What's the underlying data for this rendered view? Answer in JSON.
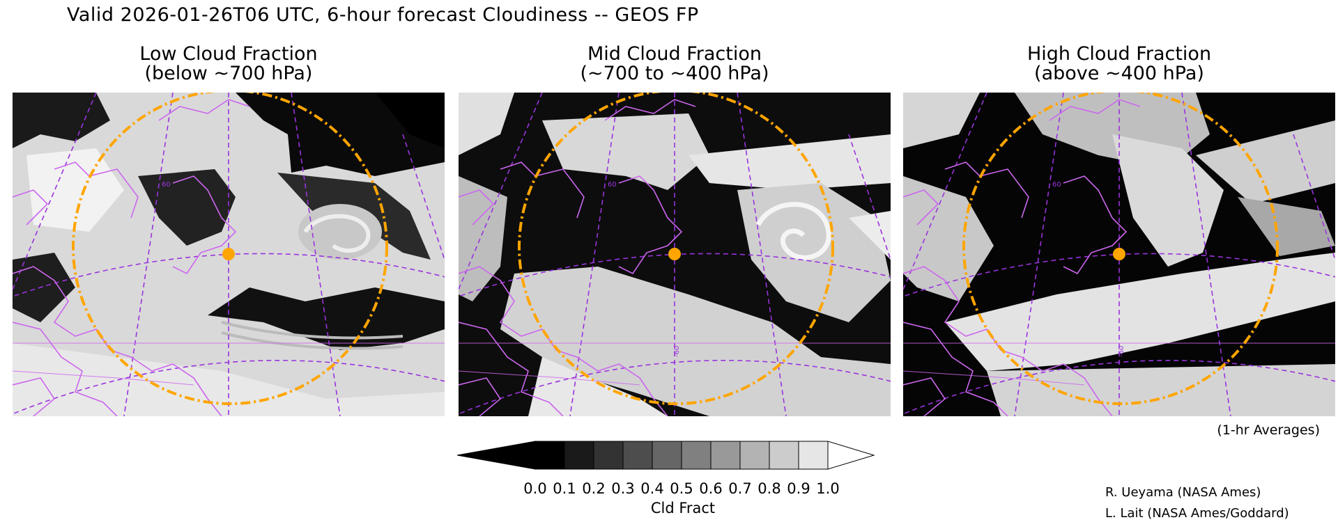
{
  "title": "Valid 2026-01-26T06 UTC, 6-hour forecast Cloudiness -- GEOS FP",
  "panels": [
    {
      "id": "low",
      "title_line1": "Low Cloud Fraction",
      "title_line2": "(below ~700 hPa)"
    },
    {
      "id": "mid",
      "title_line1": "Mid Cloud Fraction",
      "title_line2": "(~700 to ~400 hPa)"
    },
    {
      "id": "high",
      "title_line1": "High Cloud Fraction",
      "title_line2": "(above ~400 hPa)"
    }
  ],
  "map_labels": {
    "lat60": "60",
    "lon60": "-60"
  },
  "colorbar": {
    "label": "Cld Fract",
    "ticks": [
      "0.0",
      "0.1",
      "0.2",
      "0.3",
      "0.4",
      "0.5",
      "0.6",
      "0.7",
      "0.8",
      "0.9",
      "1.0"
    ],
    "colors": [
      "#000000",
      "#1a1a1a",
      "#333333",
      "#4d4d4d",
      "#666666",
      "#808080",
      "#999999",
      "#b3b3b3",
      "#cccccc",
      "#e6e6e6"
    ],
    "under_color": "#000000",
    "over_color": "#ffffff"
  },
  "note": "(1-hr Averages)",
  "credits": [
    "R. Ueyama (NASA Ames)",
    "L. Lait (NASA Ames/Goddard)"
  ],
  "colors": {
    "coastline": "#cc66ee",
    "grid": "#9933dd",
    "range_ring": "#ffa500",
    "marker": "#ffa500"
  }
}
